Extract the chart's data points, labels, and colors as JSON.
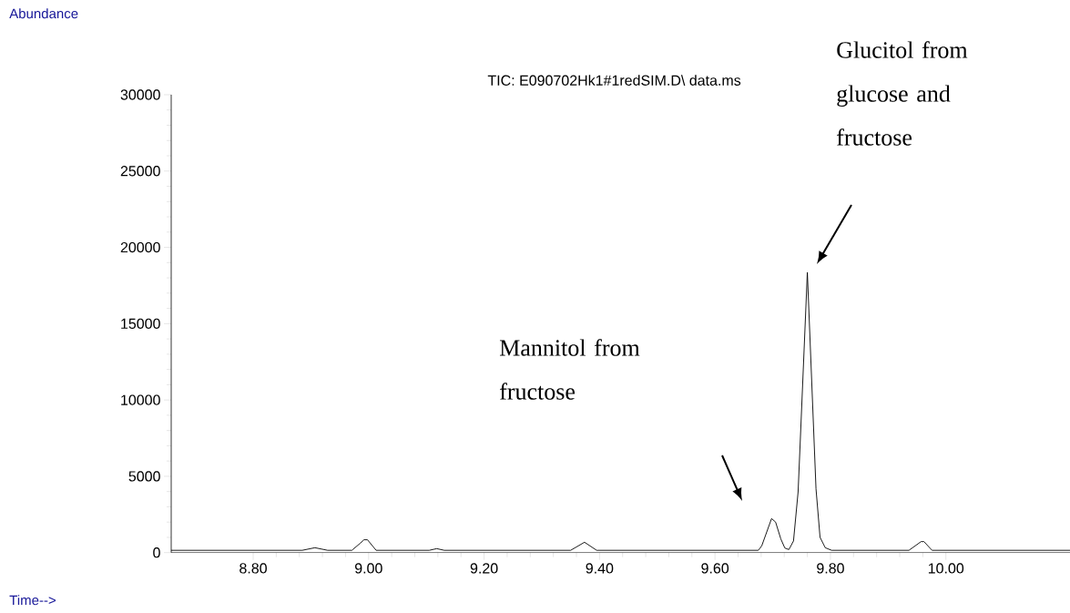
{
  "chart_data": {
    "type": "line",
    "title": "TIC: E090702Hk1#1redSIM.D\\ data.ms",
    "xlim": [
      8.658,
      10.215
    ],
    "ylim": [
      0,
      30000
    ],
    "xticks": [
      {
        "value": 8.8,
        "label": "8.80"
      },
      {
        "value": 9.0,
        "label": "9.00"
      },
      {
        "value": 9.2,
        "label": "9.20"
      },
      {
        "value": 9.4,
        "label": "9.40"
      },
      {
        "value": 9.6,
        "label": "9.60"
      },
      {
        "value": 9.8,
        "label": "9.80"
      },
      {
        "value": 10.0,
        "label": "10.00"
      }
    ],
    "yticks": [
      0,
      5000,
      10000,
      15000,
      20000,
      25000,
      30000
    ],
    "annotations": [
      "Glucitol from glucose and fructose",
      "Mannitol from fructose",
      "Abundance",
      "Time-->"
    ],
    "series": [
      {
        "color": "#000000",
        "x": [
          8.658,
          8.885,
          8.907,
          8.929,
          8.971,
          8.985,
          8.992,
          8.998,
          9.013,
          9.105,
          9.118,
          9.131,
          9.35,
          9.374,
          9.395,
          9.675,
          9.681,
          9.698,
          9.705,
          9.714,
          9.721,
          9.728,
          9.736,
          9.744,
          9.76,
          9.775,
          9.782,
          9.791,
          9.802,
          9.936,
          9.957,
          9.962,
          9.976,
          10.215
        ],
        "values": [
          150,
          150,
          320,
          150,
          150,
          600,
          840,
          840,
          150,
          150,
          260,
          150,
          150,
          680,
          150,
          150,
          440,
          2230,
          2000,
          900,
          300,
          200,
          760,
          3980,
          18360,
          4180,
          1000,
          320,
          150,
          150,
          720,
          720,
          150,
          150
        ]
      }
    ]
  }
}
